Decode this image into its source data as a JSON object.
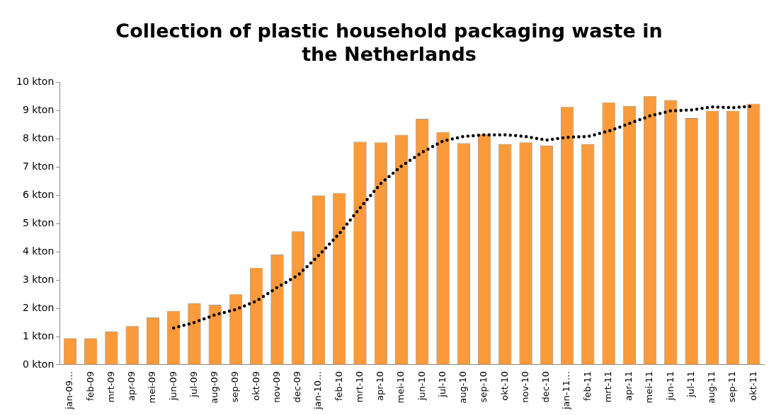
{
  "chart_data": {
    "type": "bar",
    "title": [
      "Collection of plastic household packaging waste in",
      "the Netherlands"
    ],
    "categories": [
      "jan-09…",
      "feb-09",
      "mrt-09",
      "apr-09",
      "mei-09",
      "jun-09",
      "jul-09",
      "aug-09",
      "sep-09",
      "okt-09",
      "nov-09",
      "dec-09",
      "jan-10…",
      "feb-10",
      "mrt-10",
      "apr-10",
      "mei-10",
      "jun-10",
      "jul-10",
      "aug-10",
      "sep-10",
      "okt-10",
      "nov-10",
      "dec-10",
      "jan-11…",
      "feb-11",
      "mrt-11",
      "apr-11",
      "mei-11",
      "jun-11",
      "jul-11",
      "aug-11",
      "sep-11",
      "okt-11"
    ],
    "series": [
      {
        "color": "#fb9a3a",
        "values": [
          0.94,
          0.94,
          1.18,
          1.37,
          1.67,
          1.91,
          2.18,
          2.12,
          2.5,
          3.44,
          3.9,
          4.73,
          6.0,
          6.08,
          7.9,
          7.88,
          8.15,
          8.71,
          8.25,
          7.85,
          8.17,
          7.82,
          7.88,
          7.77,
          9.14,
          7.82,
          9.3,
          9.17,
          9.52,
          9.38,
          8.74,
          9.0,
          9.0,
          9.25
        ]
      },
      {
        "type": "line",
        "color": "#000000",
        "line_style": "dotted",
        "values": [
          null,
          null,
          null,
          null,
          null,
          1.3,
          1.5,
          1.77,
          1.96,
          2.26,
          2.74,
          3.17,
          3.87,
          4.65,
          5.56,
          6.42,
          7.04,
          7.53,
          7.93,
          8.09,
          8.15,
          8.15,
          8.09,
          7.96,
          8.06,
          8.09,
          8.28,
          8.55,
          8.82,
          9.0,
          9.03,
          9.14,
          9.11,
          9.17
        ]
      }
    ],
    "ylim": [
      0,
      10
    ],
    "yticks": [
      {
        "value": 0,
        "label": "0 kton"
      },
      {
        "value": 1,
        "label": "1 kton"
      },
      {
        "value": 2,
        "label": "2 kton"
      },
      {
        "value": 3,
        "label": "3 kton"
      },
      {
        "value": 4,
        "label": "4 kton"
      },
      {
        "value": 5,
        "label": "5 kton"
      },
      {
        "value": 6,
        "label": "6 kton"
      },
      {
        "value": 7,
        "label": "7 kton"
      },
      {
        "value": 8,
        "label": "8 kton"
      },
      {
        "value": 9,
        "label": "9 kton"
      },
      {
        "value": 10,
        "label": "10 kton"
      }
    ],
    "grid": false,
    "legend": false
  }
}
